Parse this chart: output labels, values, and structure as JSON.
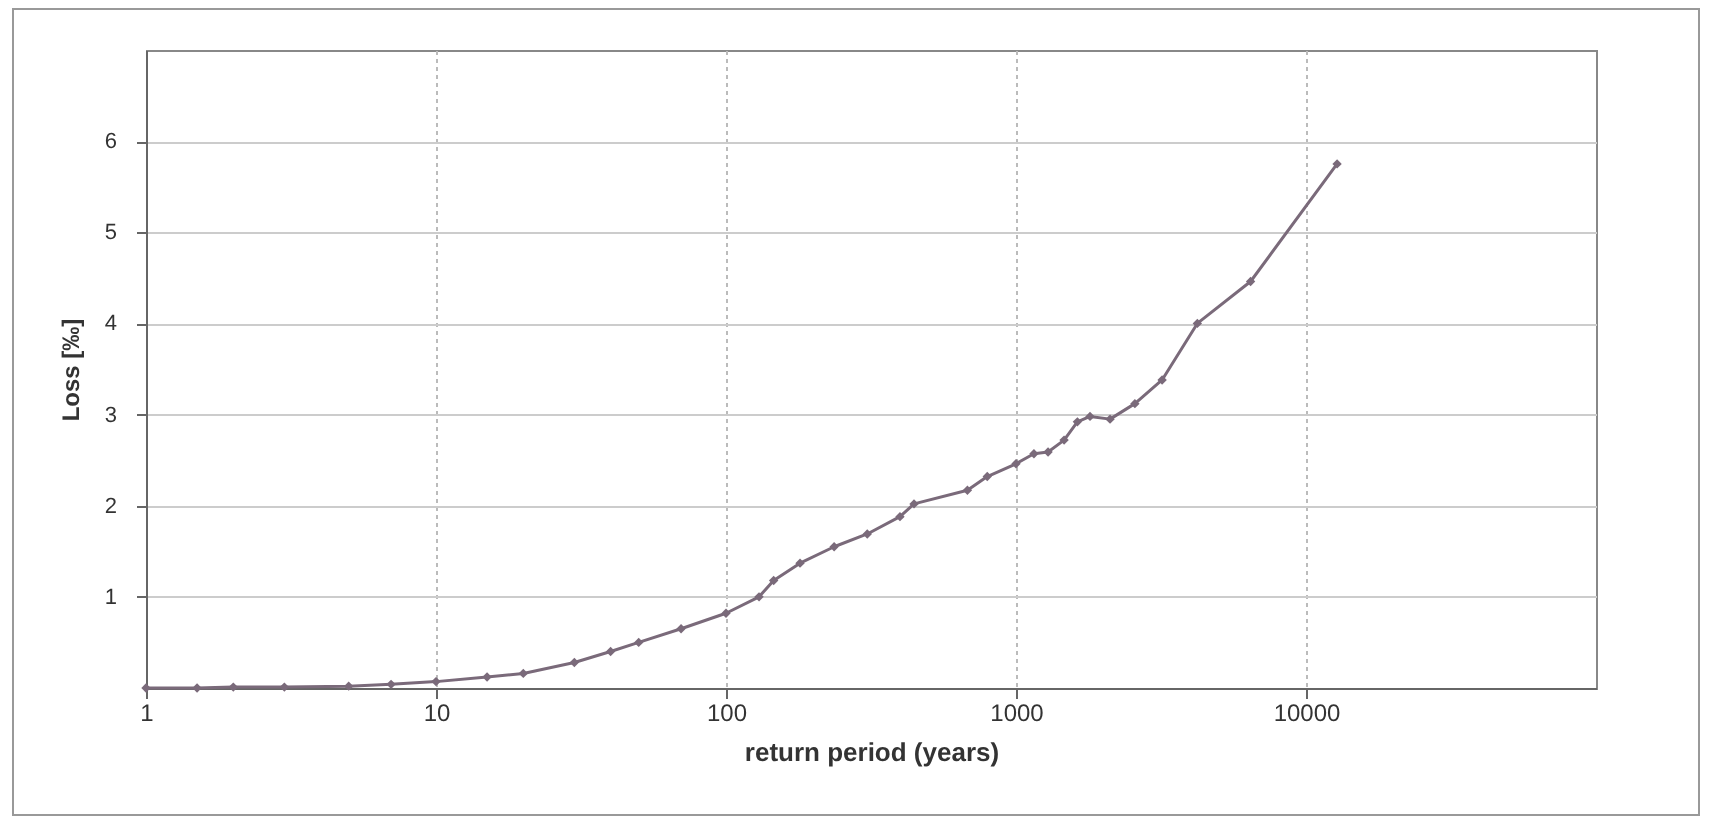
{
  "chart_data": {
    "type": "line",
    "xlabel": "return period (years)",
    "ylabel": "Loss [‰]",
    "log": "x",
    "grid": true,
    "marker": "diamond",
    "line_style": "solid",
    "xlim": [
      1,
      100000
    ],
    "xticks": [
      1,
      10,
      100,
      1000,
      10000
    ],
    "ylim": [
      0,
      7
    ],
    "yticks": [
      1,
      2,
      3,
      4,
      5,
      6
    ],
    "x": [
      1,
      1.5,
      2,
      3,
      5,
      7,
      10,
      15,
      20,
      30,
      40,
      50,
      70,
      100,
      130,
      146,
      180,
      236,
      307,
      398,
      445,
      680,
      796,
      1000,
      1153,
      1290,
      1465,
      1628,
      1800,
      2110,
      2570,
      3190,
      4220,
      6440,
      12800
    ],
    "series": [
      {
        "color": "#7a6a7a",
        "values": [
          0,
          0,
          0.01,
          0.01,
          0.02,
          0.04,
          0.07,
          0.12,
          0.16,
          0.28,
          0.4,
          0.5,
          0.65,
          0.82,
          1.0,
          1.18,
          1.37,
          1.55,
          1.69,
          1.88,
          2.02,
          2.17,
          2.32,
          2.46,
          2.57,
          2.59,
          2.72,
          2.92,
          2.98,
          2.95,
          3.12,
          3.38,
          4.0,
          4.46,
          5.75
        ]
      }
    ]
  }
}
